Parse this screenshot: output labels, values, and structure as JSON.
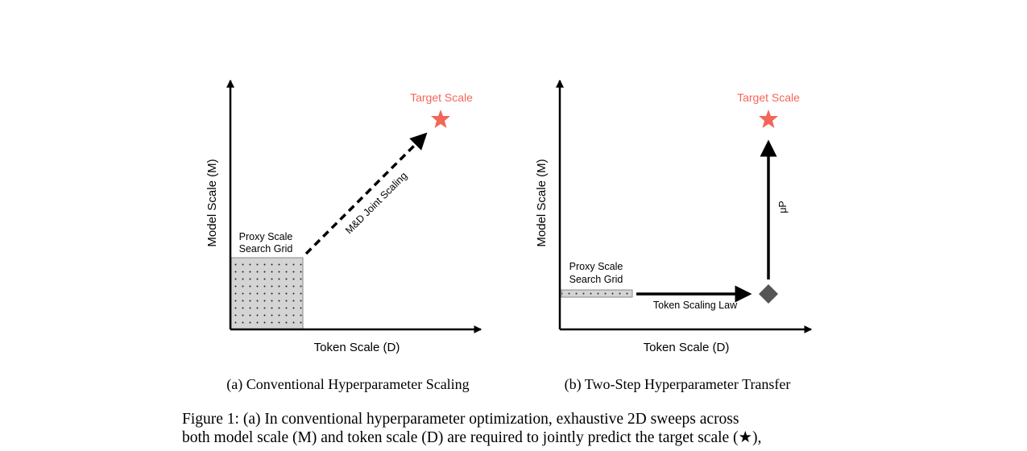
{
  "panels": [
    {
      "y_axis_label": "Model Scale (M)",
      "x_axis_label": "Token Scale (D)",
      "target_label": "Target Scale",
      "grid_label": [
        "Proxy Scale",
        "Search Grid"
      ],
      "arrow_label": "M&D Joint Scaling",
      "subcaption": "(a) Conventional Hyperparameter Scaling"
    },
    {
      "y_axis_label": "Model Scale (M)",
      "x_axis_label": "Token Scale (D)",
      "target_label": "Target Scale",
      "grid_label": [
        "Proxy Scale",
        "Search Grid"
      ],
      "arrow_label": "Token Scaling Law",
      "vertical_arrow_label": "μP",
      "subcaption": "(b) Two-Step Hyperparameter Transfer"
    }
  ],
  "caption": {
    "lines": [
      "Figure 1: (a) In conventional hyperparameter optimization, exhaustive 2D sweeps across",
      "both model scale (M) and token scale (D) are required to jointly predict the target scale (★),"
    ]
  }
}
